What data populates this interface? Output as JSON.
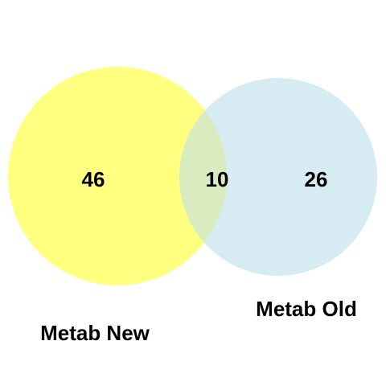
{
  "chart_data": {
    "type": "venn",
    "sets": [
      {
        "name": "Metab New",
        "only_count": "46",
        "color": "#ffff80"
      },
      {
        "name": "Metab Old",
        "only_count": "26",
        "color": "#d6ebf2"
      }
    ],
    "intersection": {
      "count": "10",
      "color": "#d9ecbf"
    }
  }
}
